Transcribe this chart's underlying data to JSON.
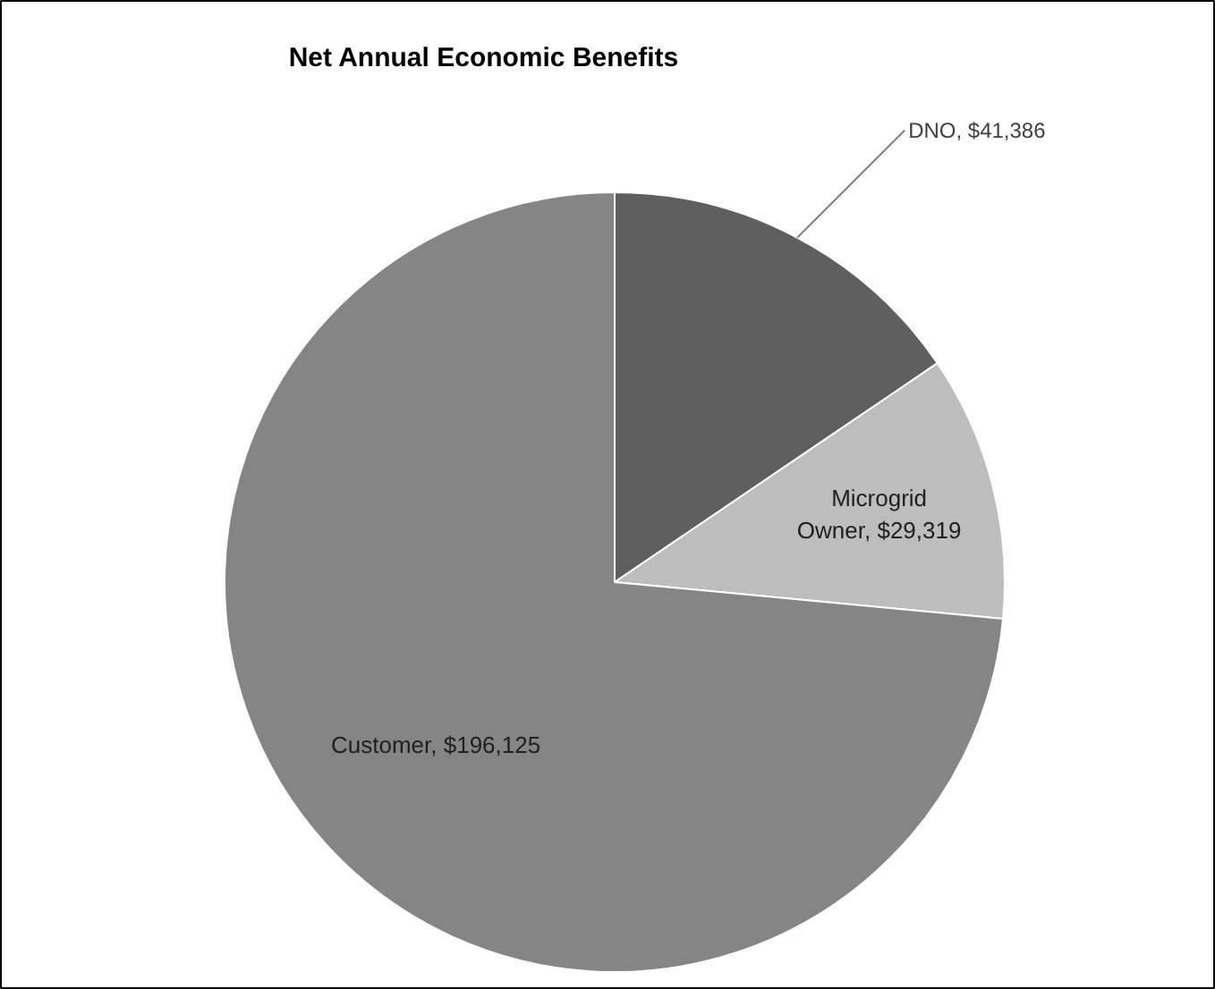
{
  "chart_data": {
    "type": "pie",
    "title": "Net Annual Economic Benefits",
    "categories": [
      "DNO",
      "Microgrid Owner",
      "Customer"
    ],
    "values": [
      41386,
      29319,
      196125
    ],
    "value_labels": [
      "$41,386",
      "$29,319",
      "$196,125"
    ],
    "colors": [
      "#5f5f5f",
      "#bdbdbd",
      "#858585"
    ]
  }
}
